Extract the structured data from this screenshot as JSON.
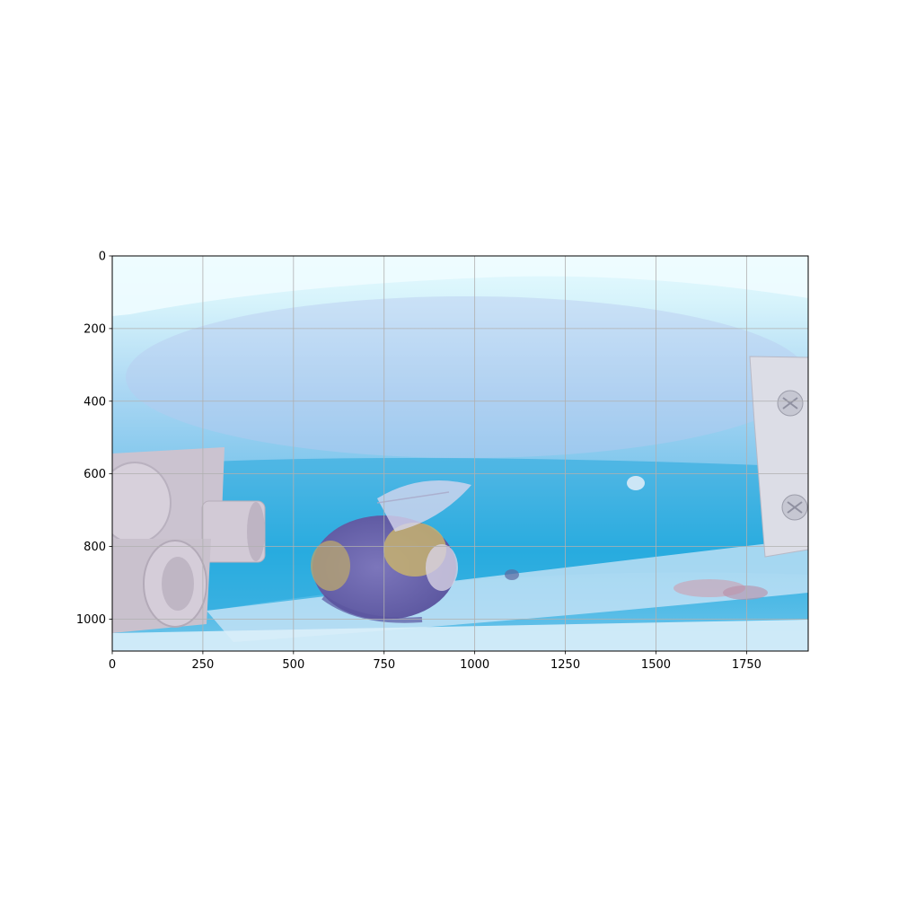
{
  "figure": {
    "image_extent": {
      "x": [
        0,
        1920
      ],
      "y": [
        1088,
        0
      ]
    },
    "x_ticks": [
      0,
      250,
      500,
      750,
      1000,
      1250,
      1500,
      1750
    ],
    "y_ticks": [
      0,
      200,
      400,
      600,
      800,
      1000
    ],
    "grid": true,
    "colors": {
      "grid": "#b0b0b0",
      "frame": "#000000",
      "background": "#ffffff",
      "photo_sky": "#c9ecf8",
      "photo_water": "#2fb4e3",
      "bee_body": "#6a64ae"
    }
  }
}
